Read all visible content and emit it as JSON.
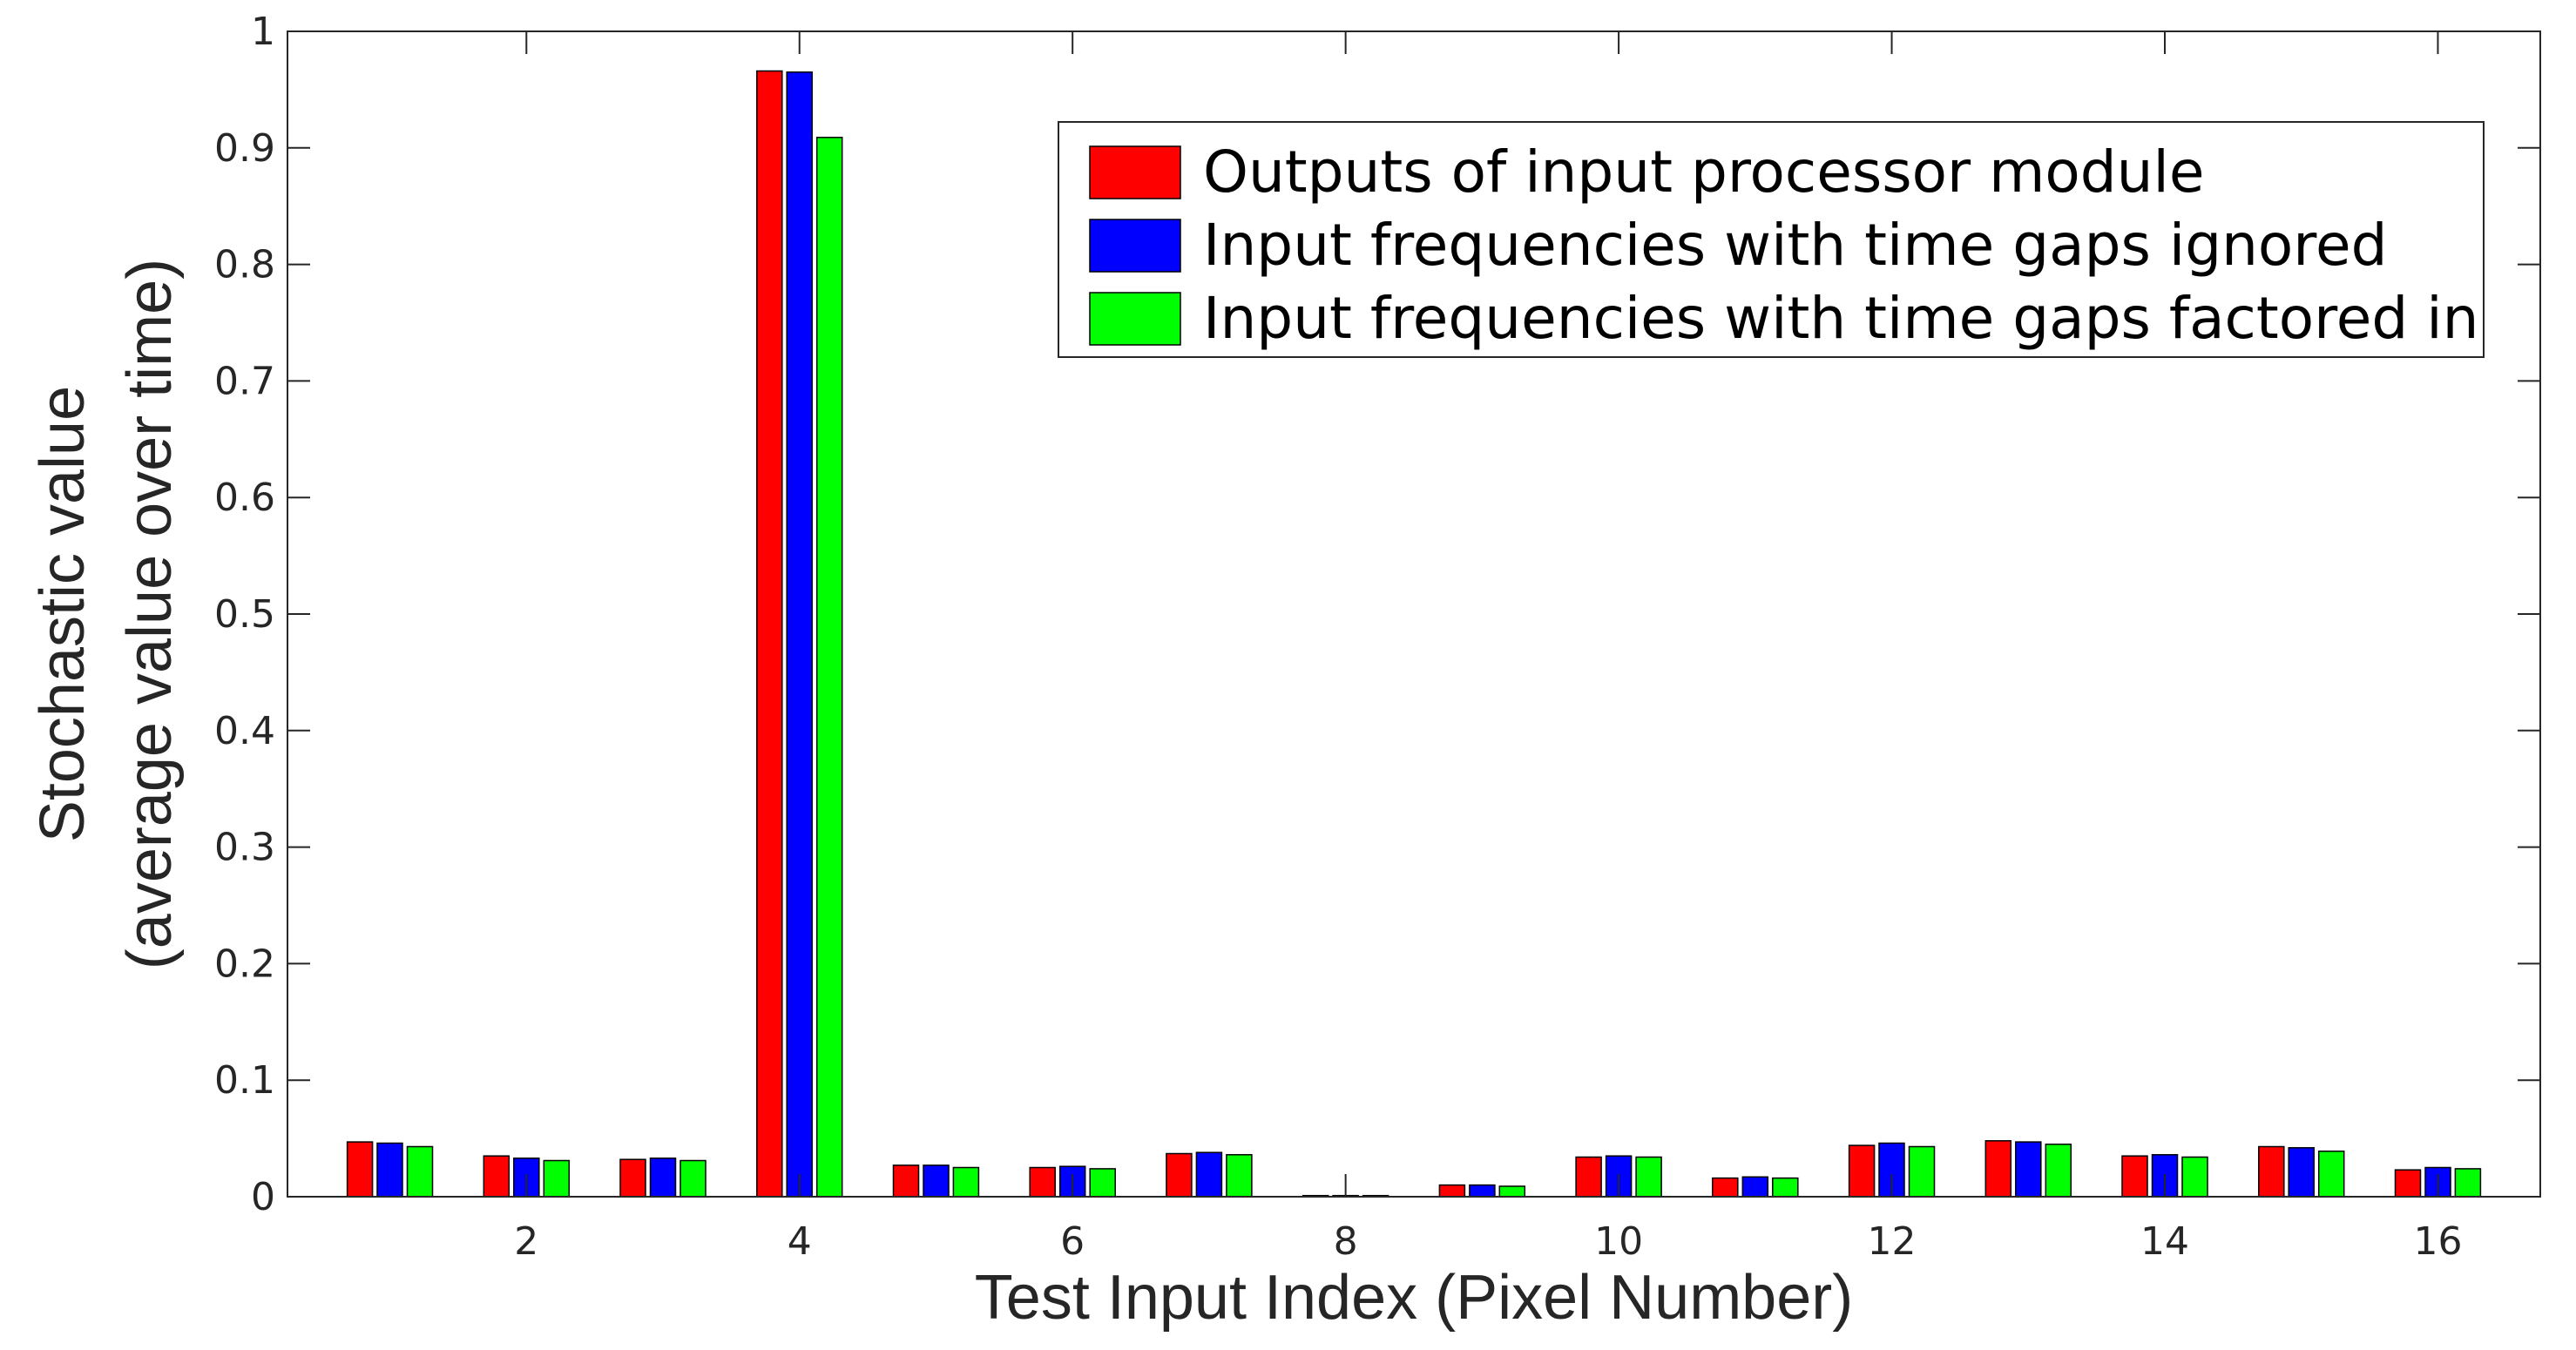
{
  "chart_data": {
    "type": "bar",
    "xlabel": "Test Input Index (Pixel Number)",
    "ylabel_line1": "Stochastic value",
    "ylabel_line2": "(average value over time)",
    "categories": [
      1,
      2,
      3,
      4,
      5,
      6,
      7,
      8,
      9,
      10,
      11,
      12,
      13,
      14,
      15,
      16
    ],
    "xtick_labels": [
      "2",
      "4",
      "6",
      "8",
      "10",
      "12",
      "14",
      "16"
    ],
    "xtick_values": [
      2,
      4,
      6,
      8,
      10,
      12,
      14,
      16
    ],
    "ylim": [
      0,
      1
    ],
    "yticks": [
      0,
      0.1,
      0.2,
      0.3,
      0.4,
      0.5,
      0.6,
      0.7,
      0.8,
      0.9,
      1
    ],
    "ytick_labels": [
      "0",
      "0.1",
      "0.2",
      "0.3",
      "0.4",
      "0.5",
      "0.6",
      "0.7",
      "0.8",
      "0.9",
      "1"
    ],
    "grid": false,
    "legend_position": "top-right",
    "series": [
      {
        "name": "Outputs of input processor module",
        "color": "#ff0000",
        "values": [
          0.047,
          0.035,
          0.032,
          0.966,
          0.027,
          0.025,
          0.037,
          0.001,
          0.01,
          0.034,
          0.016,
          0.044,
          0.048,
          0.035,
          0.043,
          0.023
        ]
      },
      {
        "name": "Input frequencies with time gaps ignored",
        "color": "#0000ff",
        "values": [
          0.046,
          0.033,
          0.033,
          0.965,
          0.027,
          0.026,
          0.038,
          0.001,
          0.01,
          0.035,
          0.017,
          0.046,
          0.047,
          0.036,
          0.042,
          0.025
        ]
      },
      {
        "name": "Input frequencies with time gaps factored in",
        "color": "#00ff00",
        "values": [
          0.043,
          0.031,
          0.031,
          0.909,
          0.025,
          0.024,
          0.036,
          0.001,
          0.009,
          0.034,
          0.016,
          0.043,
          0.045,
          0.034,
          0.039,
          0.024
        ]
      }
    ]
  }
}
